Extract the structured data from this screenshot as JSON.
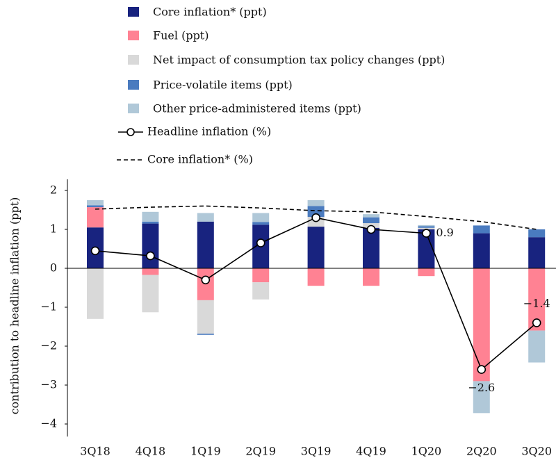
{
  "chart_data": {
    "type": "bar",
    "ylabel": "contribution to headline inflation (ppt)",
    "categories": [
      "3Q18",
      "4Q18",
      "1Q19",
      "2Q19",
      "3Q19",
      "4Q19",
      "1Q20",
      "2Q20",
      "3Q20"
    ],
    "series": [
      {
        "name": "Core inflation* (ppt)",
        "type": "bar",
        "color": "#18237f",
        "values": [
          1.05,
          1.15,
          1.2,
          1.12,
          1.07,
          1.04,
          1.0,
          0.9,
          0.8
        ]
      },
      {
        "name": "Fuel (ppt)",
        "type": "bar",
        "color": "#ff8293",
        "values": [
          0.52,
          -0.17,
          -0.82,
          -0.36,
          -0.45,
          -0.45,
          -0.2,
          -2.9,
          -1.6
        ]
      },
      {
        "name": "Net impact of consumption tax policy changes (ppt)",
        "type": "bar",
        "color": "#d9d9d9",
        "values": [
          -1.3,
          -0.96,
          -0.86,
          -0.44,
          0.25,
          0.12,
          0.04,
          0,
          0
        ]
      },
      {
        "name": "Price-volatile items (ppt)",
        "type": "bar",
        "color": "#4a7bbf",
        "values": [
          0.05,
          0.05,
          -0.03,
          0.07,
          0.28,
          0.15,
          0.04,
          0.2,
          0.2
        ]
      },
      {
        "name": "Other price-administered items (ppt)",
        "type": "bar",
        "color": "#b0c8d8",
        "values": [
          0.13,
          0.25,
          0.22,
          0.23,
          0.15,
          0.08,
          0.03,
          -0.82,
          -0.82
        ]
      },
      {
        "name": "Headline inflation (%)",
        "type": "line",
        "style": "solid",
        "color": "#000000",
        "values": [
          0.45,
          0.32,
          -0.3,
          0.65,
          1.3,
          1.0,
          0.9,
          -2.6,
          -1.4
        ],
        "value_labels": [
          null,
          null,
          null,
          null,
          null,
          null,
          "0.9",
          "−2.6",
          "−1.4"
        ]
      },
      {
        "name": "Core inflation* (%)",
        "type": "line",
        "style": "dashed",
        "color": "#000000",
        "values": [
          1.52,
          1.57,
          1.6,
          1.55,
          1.48,
          1.45,
          1.33,
          1.2,
          1.0
        ]
      }
    ],
    "ylim": [
      -4.3,
      2.3
    ],
    "yticks": [
      {
        "value": -4,
        "label": "−4"
      },
      {
        "value": -3,
        "label": "−3"
      },
      {
        "value": -2,
        "label": "−2"
      },
      {
        "value": -1,
        "label": "−1"
      },
      0,
      1,
      2
    ],
    "grid": false
  }
}
